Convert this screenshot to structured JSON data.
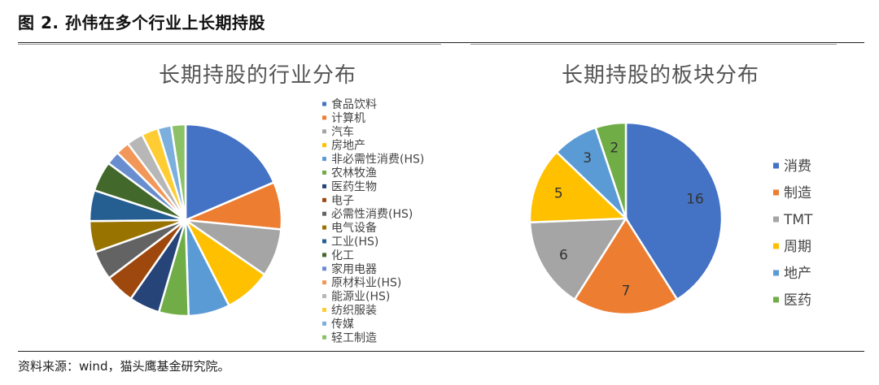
{
  "figure": {
    "title": "图 2. 孙伟在多个行业上长期持股",
    "source": "资料来源：wind，猫头鹰基金研究院。"
  },
  "chart_data": [
    {
      "type": "pie",
      "title": "长期持股的行业分布",
      "legend_position": "right",
      "categories": [
        "食品饮料",
        "计算机",
        "汽车",
        "房地产",
        "非必需性消费(HS)",
        "农林牧渔",
        "医药生物",
        "电子",
        "必需性消费(HS)",
        "电气设备",
        "工业(HS)",
        "化工",
        "家用电器",
        "原材料业(HS)",
        "能源业(HS)",
        "纺织服装",
        "传媒",
        "轻工制造"
      ],
      "values": [
        18.6,
        8.0,
        8.1,
        7.9,
        7.0,
        5.0,
        5.2,
        5.0,
        4.9,
        5.3,
        5.2,
        5.1,
        2.3,
        2.3,
        2.8,
        2.8,
        2.3,
        2.4
      ],
      "colors": [
        "#4472C4",
        "#ED7D31",
        "#A5A5A5",
        "#FFC000",
        "#5B9BD5",
        "#70AD47",
        "#264478",
        "#9E480E",
        "#636363",
        "#997300",
        "#255E91",
        "#43682B",
        "#698ED0",
        "#F1975A",
        "#B7B7B7",
        "#FFCD33",
        "#7CAFDD",
        "#8CC168"
      ]
    },
    {
      "type": "pie",
      "title": "长期持股的板块分布",
      "legend_position": "right",
      "categories": [
        "消费",
        "制造",
        "TMT",
        "周期",
        "地产",
        "医药"
      ],
      "values": [
        16,
        7,
        6,
        5,
        3,
        2
      ],
      "colors": [
        "#4472C4",
        "#ED7D31",
        "#A5A5A5",
        "#FFC000",
        "#5B9BD5",
        "#70AD47"
      ]
    }
  ]
}
